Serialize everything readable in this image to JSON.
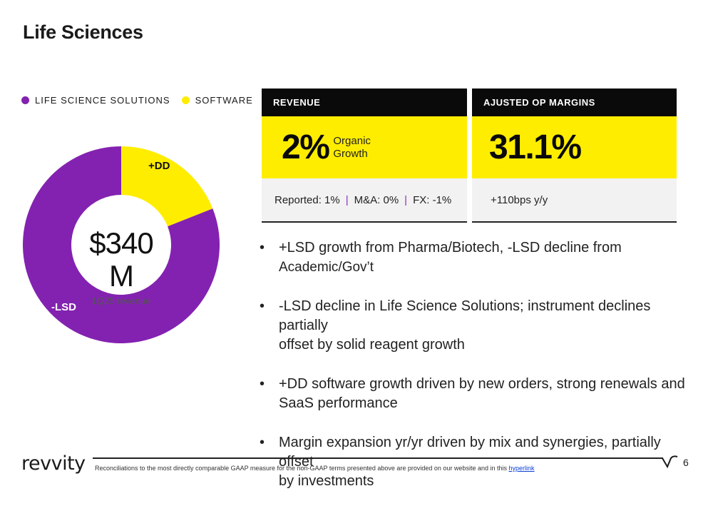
{
  "title": "Life Sciences",
  "legend": [
    {
      "label": "LIFE SCIENCE SOLUTIONS",
      "color": "#8322b0"
    },
    {
      "label": "SOFTWARE",
      "color": "#ffed00"
    }
  ],
  "donut": {
    "center_value": "$340 M",
    "center_sub": "1Q25 revenue",
    "segments": [
      {
        "name": "Software",
        "label": "+DD",
        "fraction": 0.19,
        "color": "#ffed00"
      },
      {
        "name": "Life Science Solutions",
        "label": "-LSD",
        "fraction": 0.81,
        "color": "#8322b0"
      }
    ]
  },
  "revenue": {
    "header": "REVENUE",
    "value": "2%",
    "note_line1": "Organic",
    "note_line2": "Growth",
    "reported": "Reported: 1%",
    "ma": "M&A: 0%",
    "fx": "FX: -1%",
    "separator": "|"
  },
  "op_margin": {
    "header": "AJUSTED OP MARGINS",
    "value": "31.1%",
    "foot": "+110bps y/y"
  },
  "bullets": [
    {
      "line1": "+LSD growth from Pharma/Biotech, -LSD decline from",
      "line2": "Academic/Gov’t"
    },
    {
      "line1": "-LSD decline in Life Science Solutions; instrument declines partially",
      "line2": "offset by solid reagent growth"
    },
    {
      "line1": "+DD software growth driven by new orders, strong renewals and",
      "line2": "SaaS performance"
    },
    {
      "line1": "Margin expansion yr/yr driven by mix and synergies, partially offset",
      "line2": "by investments"
    }
  ],
  "bullet_char": "•",
  "footer": {
    "logo_text": "revvity",
    "note": "Reconciliations to the most directly comparable GAAP measure for the non-GAAP terms presented above are provided on our website and in this",
    "link": "hyperlink",
    "page": "6"
  }
}
